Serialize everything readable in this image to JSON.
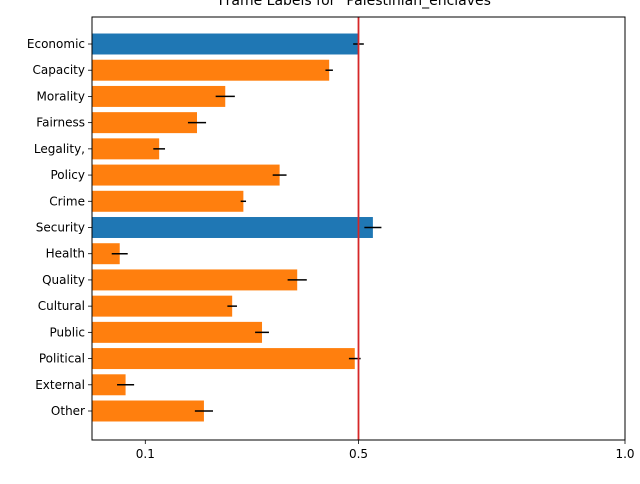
{
  "chart_data": {
    "type": "bar",
    "orientation": "horizontal",
    "title": "Frame Labels for \"Palestinian_enclaves\"",
    "xlabel": "",
    "ylabel": "",
    "xlim": [
      0.0,
      1.0
    ],
    "xticks": [
      0.1,
      0.5,
      1.0
    ],
    "xtick_labels": [
      "0.1",
      "0.5",
      "1.0"
    ],
    "grid": false,
    "legend": "none",
    "reference_line": {
      "x": 0.5,
      "color": "#d62728"
    },
    "colors": {
      "highlight": "#1f77b4",
      "default": "#ff7f0e",
      "errorbar": "#000000"
    },
    "categories": [
      "Economic",
      "Capacity",
      "Morality",
      "Fairness",
      "Legality,",
      "Policy",
      "Crime",
      "Security",
      "Health",
      "Quality",
      "Cultural",
      "Public",
      "Political",
      "External",
      "Other"
    ],
    "values": [
      0.5,
      0.445,
      0.25,
      0.197,
      0.126,
      0.352,
      0.284,
      0.527,
      0.052,
      0.385,
      0.263,
      0.319,
      0.493,
      0.063,
      0.21
    ],
    "errors": [
      0.01,
      0.007,
      0.018,
      0.017,
      0.011,
      0.013,
      0.005,
      0.016,
      0.015,
      0.018,
      0.009,
      0.013,
      0.011,
      0.016,
      0.017
    ],
    "highlighted": [
      "Economic",
      "Security"
    ]
  }
}
